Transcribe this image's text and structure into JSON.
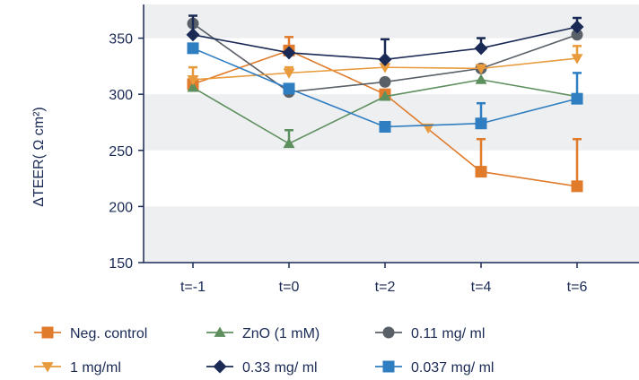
{
  "chart_data": {
    "type": "line",
    "categories": [
      "t=-1",
      "t=0",
      "t=2",
      "t=4",
      "t=6"
    ],
    "ylabel": "ΔTEER( Ω cm²)",
    "ylim": [
      150,
      380
    ],
    "yticks": [
      150,
      200,
      250,
      300,
      350
    ],
    "grid": "alternating horizontal bands",
    "legend_position": "bottom",
    "series": [
      {
        "name": "Neg. control",
        "color": "#e07b2c",
        "marker": "square",
        "values": [
          309,
          339,
          300,
          231,
          218
        ],
        "errors": [
          0,
          12,
          0,
          29,
          42
        ]
      },
      {
        "name": "ZnO (1 mM)",
        "color": "#5e8f5e",
        "marker": "triangle-up",
        "values": [
          306,
          256,
          298,
          313,
          298
        ],
        "errors": [
          0,
          12,
          0,
          0,
          0
        ]
      },
      {
        "name": "0.11 mg/ ml",
        "color": "#5a6068",
        "marker": "circle",
        "values": [
          363,
          302,
          311,
          323,
          353
        ],
        "errors": [
          0,
          0,
          0,
          0,
          0
        ]
      },
      {
        "name": "1 mg/ml",
        "color": "#e89a3c",
        "marker": "triangle-down",
        "values": [
          313,
          319,
          324,
          323,
          332
        ],
        "errors": [
          11,
          5,
          0,
          0,
          11
        ],
        "extra_point": {
          "x": 2.45,
          "y": 270
        }
      },
      {
        "name": "0.33 mg/ ml",
        "color": "#1a2a55",
        "marker": "diamond",
        "values": [
          353,
          337,
          331,
          341,
          360
        ],
        "errors": [
          17,
          0,
          18,
          9,
          8
        ]
      },
      {
        "name": "0.037 mg/ ml",
        "color": "#2f7ec1",
        "marker": "square",
        "values": [
          341,
          305,
          271,
          274,
          296
        ],
        "errors": [
          0,
          0,
          0,
          18,
          23
        ]
      }
    ]
  }
}
